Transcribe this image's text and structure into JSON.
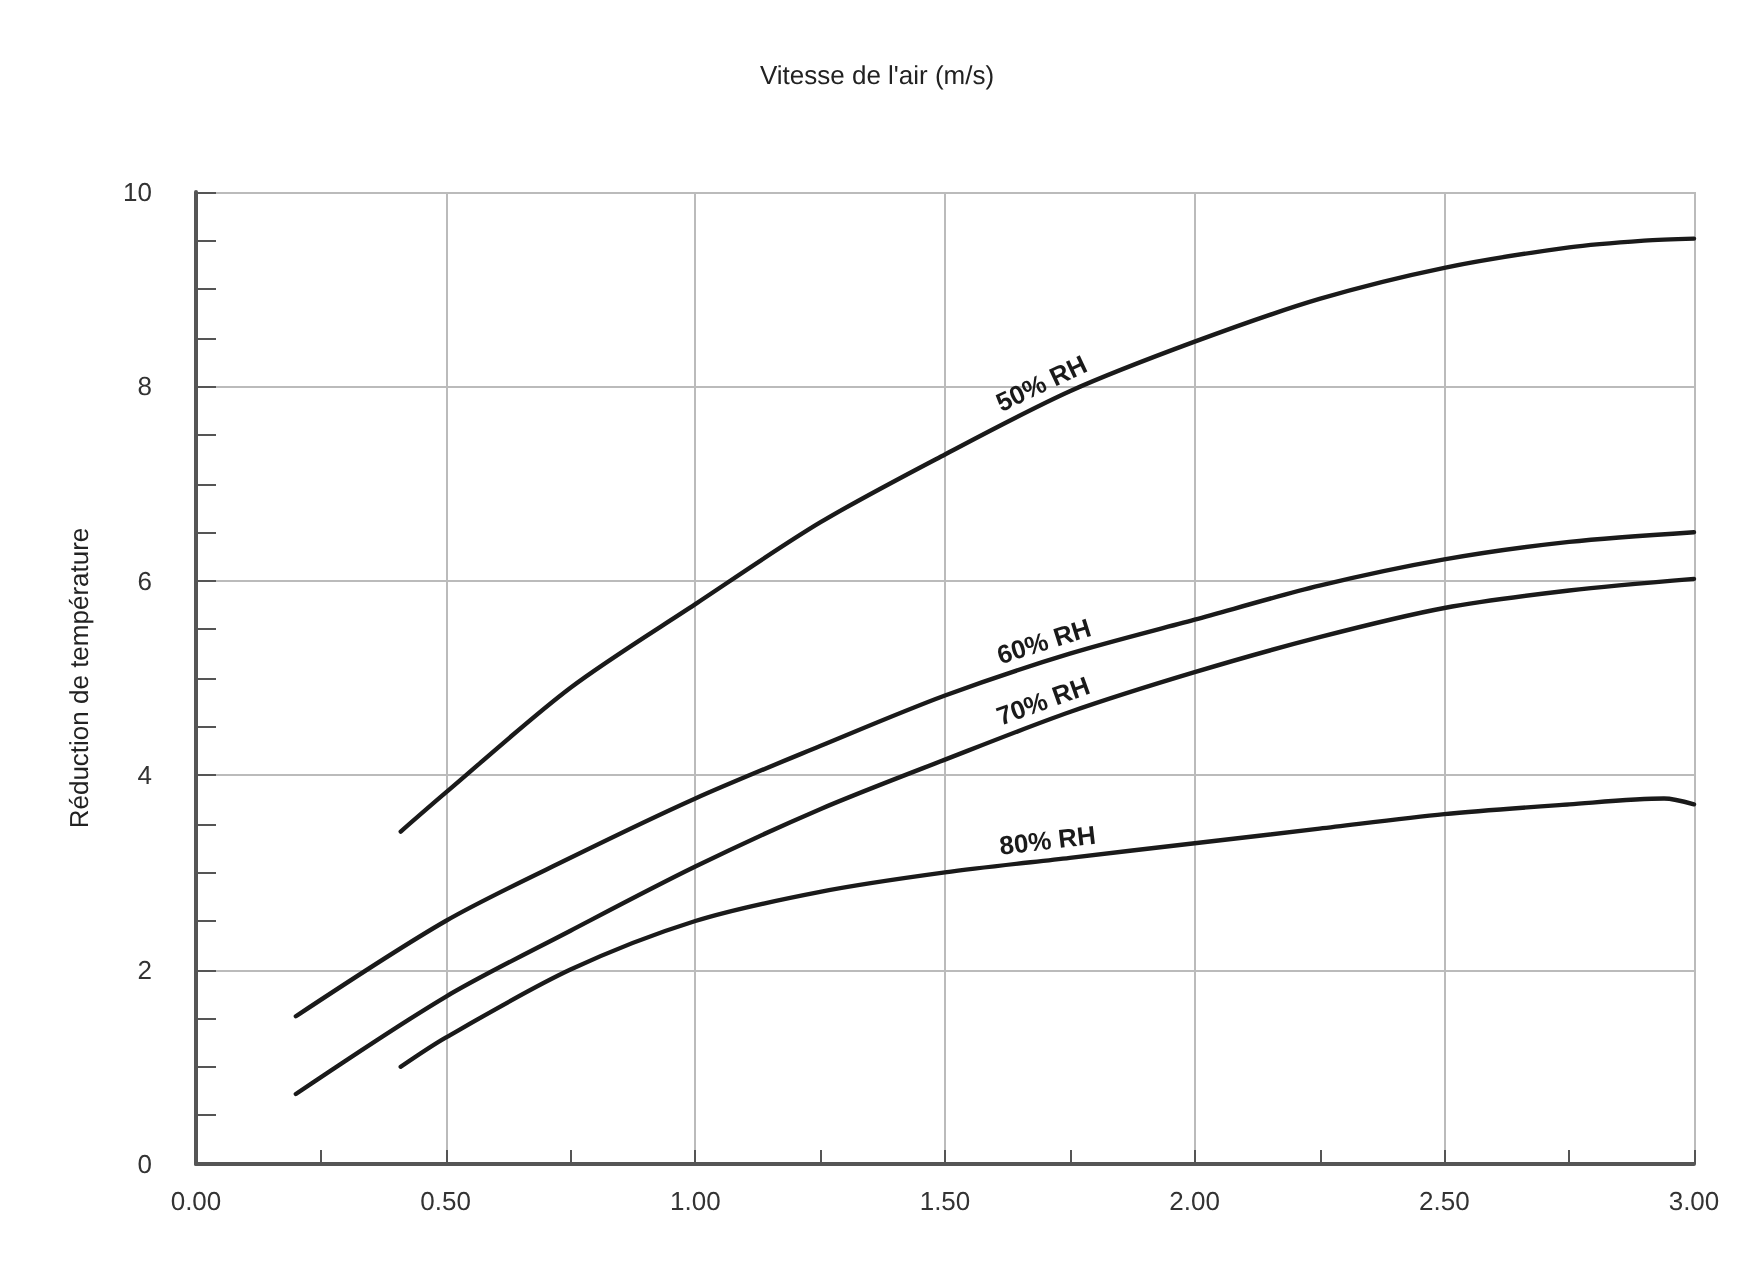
{
  "chart_data": {
    "type": "line",
    "xlabel": "Vitesse de l'air (m/s)",
    "ylabel": "Réduction de température",
    "xlim": [
      0,
      3
    ],
    "ylim": [
      0,
      10
    ],
    "xticks": [
      {
        "value": 0,
        "label": "0.00"
      },
      {
        "value": 0.5,
        "label": "0.50"
      },
      {
        "value": 1,
        "label": "1.00"
      },
      {
        "value": 1.5,
        "label": "1.50"
      },
      {
        "value": 2,
        "label": "2.00"
      },
      {
        "value": 2.5,
        "label": "2.50"
      },
      {
        "value": 3,
        "label": "3.00"
      }
    ],
    "yticks": [
      0,
      2,
      4,
      6,
      8,
      10
    ],
    "grid": true,
    "marker": "none",
    "line_style": "solid",
    "series": [
      {
        "name": "50% RH",
        "color": "#1a1a1a",
        "x": [
          0.41,
          0.5,
          0.75,
          1.0,
          1.25,
          1.5,
          1.75,
          2.0,
          2.25,
          2.5,
          2.75,
          2.9,
          3.0
        ],
        "values": [
          3.42,
          3.82,
          4.9,
          5.76,
          6.6,
          7.3,
          7.95,
          8.46,
          8.9,
          9.22,
          9.43,
          9.5,
          9.52
        ]
      },
      {
        "name": "60% RH",
        "color": "#1a1a1a",
        "x": [
          0.2,
          0.5,
          0.75,
          1.0,
          1.25,
          1.5,
          1.75,
          2.0,
          2.25,
          2.5,
          2.75,
          3.0
        ],
        "values": [
          1.52,
          2.5,
          3.15,
          3.76,
          4.3,
          4.82,
          5.25,
          5.6,
          5.95,
          6.22,
          6.4,
          6.5
        ]
      },
      {
        "name": "70% RH",
        "color": "#1a1a1a",
        "x": [
          0.2,
          0.5,
          0.75,
          1.0,
          1.25,
          1.5,
          1.75,
          2.0,
          2.25,
          2.5,
          2.75,
          3.0
        ],
        "values": [
          0.72,
          1.72,
          2.4,
          3.06,
          3.65,
          4.16,
          4.65,
          5.06,
          5.42,
          5.72,
          5.9,
          6.02
        ]
      },
      {
        "name": "80% RH",
        "color": "#1a1a1a",
        "x": [
          0.41,
          0.5,
          0.75,
          1.0,
          1.25,
          1.5,
          1.75,
          2.0,
          2.25,
          2.5,
          2.75,
          2.94,
          3.0
        ],
        "values": [
          1.0,
          1.3,
          2.0,
          2.5,
          2.8,
          3.0,
          3.15,
          3.3,
          3.45,
          3.6,
          3.7,
          3.76,
          3.7
        ]
      }
    ]
  }
}
